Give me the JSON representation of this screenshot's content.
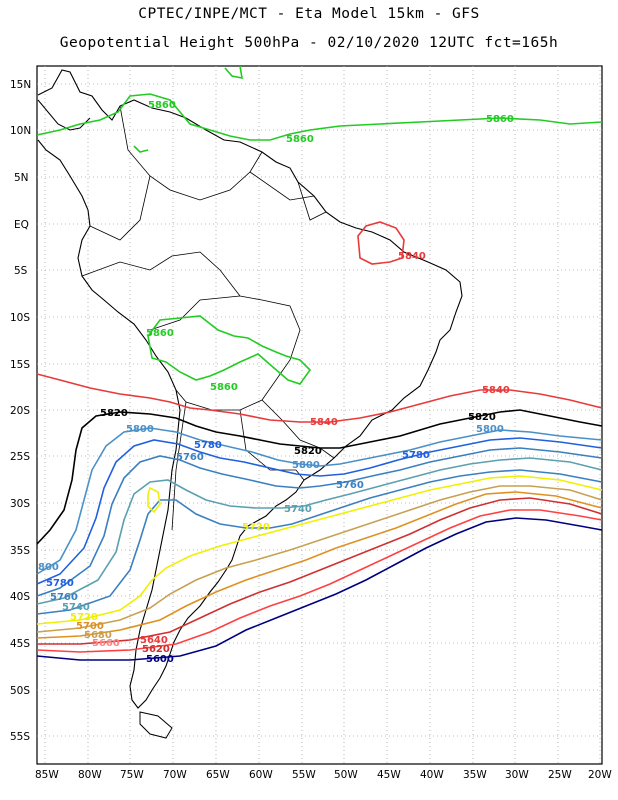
{
  "header": {
    "line1": "CPTEC/INPE/MCT -  Eta Model 15km - GFS",
    "line2": "Geopotential Height 500hPa - 02/10/2020 12UTC fct=165h"
  },
  "axes": {
    "lat_labels": [
      "15N",
      "10N",
      "5N",
      "EQ",
      "5S",
      "10S",
      "15S",
      "20S",
      "25S",
      "30S",
      "35S",
      "40S",
      "45S",
      "50S",
      "55S"
    ],
    "lon_labels": [
      "85W",
      "80W",
      "75W",
      "70W",
      "65W",
      "60W",
      "55W",
      "50W",
      "45W",
      "40W",
      "35W",
      "30W",
      "25W",
      "20W"
    ],
    "grid": "dotted",
    "lon_range": [
      "85W",
      "20W"
    ],
    "lat_range": [
      "58S",
      "17N"
    ]
  },
  "colors": {
    "c5600": "#000080",
    "c5620": "#d03030",
    "c5640": "#e83a3a",
    "c5660": "#ff8080",
    "c5680": "#c8a050",
    "c5700": "#e09020",
    "c5720": "#f0f000",
    "c5740": "#5aa0b0",
    "c5760": "#3a80c0",
    "c5780": "#2060e0",
    "c5800": "#4a90c8",
    "c5820": "#000000",
    "c5840": "#e83a3a",
    "c5860": "#22cc22"
  },
  "contour_labels": [
    {
      "text": "5860",
      "key": "c5860"
    },
    {
      "text": "5860",
      "key": "c5860"
    },
    {
      "text": "5860",
      "key": "c5860"
    },
    {
      "text": "5860",
      "key": "c5860"
    },
    {
      "text": "5860",
      "key": "c5860"
    },
    {
      "text": "5840",
      "key": "c5840"
    },
    {
      "text": "5840",
      "key": "c5840"
    },
    {
      "text": "5840",
      "key": "c5840"
    },
    {
      "text": "5820",
      "key": "c5820"
    },
    {
      "text": "5820",
      "key": "c5820"
    },
    {
      "text": "5820",
      "key": "c5820"
    },
    {
      "text": "5800",
      "key": "c5800"
    },
    {
      "text": "5800",
      "key": "c5800"
    },
    {
      "text": "5800",
      "key": "c5800"
    },
    {
      "text": "5780",
      "key": "c5780"
    },
    {
      "text": "5780",
      "key": "c5780"
    },
    {
      "text": "5780",
      "key": "c5780"
    },
    {
      "text": "5760",
      "key": "c5760"
    },
    {
      "text": "5760",
      "key": "c5760"
    },
    {
      "text": "5760",
      "key": "c5760"
    },
    {
      "text": "5740",
      "key": "c5740"
    },
    {
      "text": "5740",
      "key": "c5740"
    },
    {
      "text": "5720",
      "key": "c5720"
    },
    {
      "text": "5720",
      "key": "c5720"
    },
    {
      "text": "5700",
      "key": "c5700"
    },
    {
      "text": "5680",
      "key": "c5680"
    },
    {
      "text": "5660",
      "key": "c5660"
    },
    {
      "text": "5640",
      "key": "c5640"
    },
    {
      "text": "5620",
      "key": "c5620"
    },
    {
      "text": "5600",
      "key": "c5600"
    },
    {
      "text": "800",
      "key": "c5800"
    }
  ]
}
